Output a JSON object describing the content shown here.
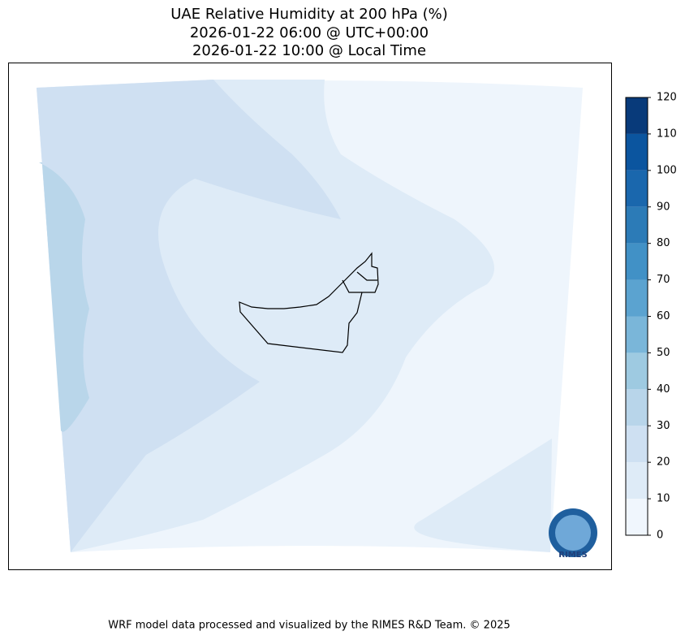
{
  "title": [
    "UAE Relative Humidity at 200 hPa (%)",
    "2026-01-22 06:00 @ UTC+00:00",
    "2026-01-22 10:00 @ Local Time"
  ],
  "colorbar": {
    "lim": [
      0,
      120
    ],
    "ticks": [
      0,
      10,
      20,
      30,
      40,
      50,
      60,
      70,
      80,
      90,
      100,
      110,
      120
    ],
    "colors": [
      "#f0f6fd",
      "#deebf7",
      "#cee0f2",
      "#b8d5ea",
      "#9ecae1",
      "#7ab6d9",
      "#5ba3d0",
      "#4191c6",
      "#2c7bb7",
      "#1a67ad",
      "#0b559f",
      "#083a7a"
    ]
  },
  "footer": "WRF model data processed and visualized by the RIMES R&D Team. © 2025",
  "logo": {
    "text": "RIMES"
  }
}
